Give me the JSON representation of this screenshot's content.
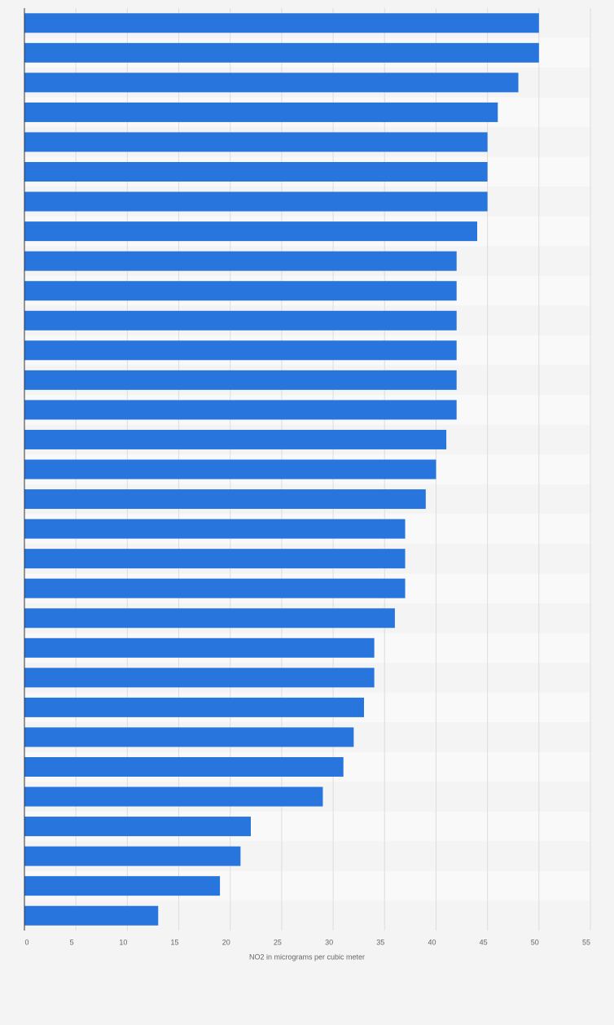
{
  "chart_data": {
    "type": "bar",
    "orientation": "horizontal",
    "x_label": "NO2 in micrograms per cubic meter",
    "categories": [
      null,
      null,
      null,
      null,
      null,
      null,
      null,
      null,
      null,
      null,
      null,
      null,
      null,
      null,
      null,
      null,
      null,
      null,
      null,
      null,
      null,
      null,
      null,
      null,
      null,
      null,
      null,
      null,
      null,
      null,
      null
    ],
    "values": [
      50,
      50,
      48,
      46,
      45,
      45,
      45,
      44,
      42,
      42,
      42,
      42,
      42,
      42,
      41,
      40,
      39,
      37,
      37,
      37,
      36,
      34,
      34,
      33,
      32,
      31,
      29,
      22,
      21,
      19,
      13
    ],
    "color": "#2876dd",
    "xlim": [
      0,
      55
    ],
    "xticks": [
      0,
      5,
      10,
      15,
      20,
      25,
      30,
      35,
      40,
      45,
      50,
      55
    ],
    "grid": true
  }
}
